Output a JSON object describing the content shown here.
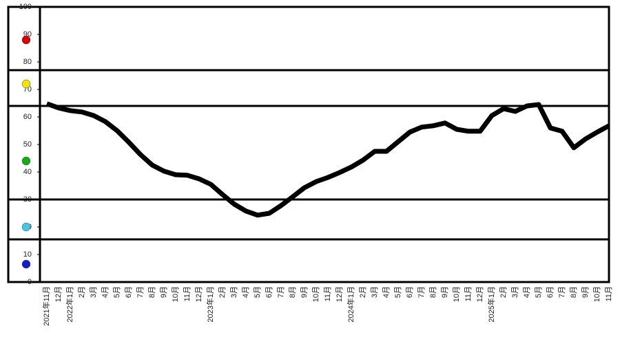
{
  "chart_data": {
    "type": "line",
    "categories": [
      "2021年11月",
      "12月",
      "2022年1月",
      "2月",
      "3月",
      "4月",
      "5月",
      "6月",
      "7月",
      "8月",
      "9月",
      "10月",
      "11月",
      "12月",
      "2023年1月",
      "2月",
      "3月",
      "4月",
      "5月",
      "6月",
      "7月",
      "8月",
      "9月",
      "10月",
      "11月",
      "12月",
      "2024年1月",
      "2月",
      "3月",
      "4月",
      "5月",
      "6月",
      "7月",
      "8月",
      "9月",
      "10月",
      "11月",
      "12月",
      "2025年1月",
      "2月",
      "3月",
      "4月",
      "5月",
      "6月",
      "7月",
      "8月",
      "9月",
      "10月",
      "11月"
    ],
    "series": [
      {
        "color": "#000000",
        "values": [
          64.8,
          63.3,
          62.3,
          61.8,
          60.5,
          58.3,
          55,
          50.8,
          46.3,
          42.5,
          40.3,
          39,
          38.8,
          37.5,
          35.5,
          31.8,
          28.3,
          25.8,
          24.3,
          25,
          27.8,
          31,
          34.3,
          36.5,
          38,
          39.8,
          41.8,
          44.3,
          47.5,
          47.5,
          51,
          54.5,
          56.3,
          56.8,
          57.8,
          55.5,
          54.8,
          54.8,
          60.5,
          63,
          62,
          64,
          64.5,
          56,
          54.8,
          48.8,
          52,
          54.5,
          56.8
        ]
      }
    ],
    "ylim": [
      0,
      100
    ],
    "yticks": [
      0,
      10,
      20,
      30,
      40,
      50,
      60,
      70,
      80,
      90,
      100
    ],
    "threshold_lines": [
      77,
      64,
      30,
      15.5
    ]
  }
}
